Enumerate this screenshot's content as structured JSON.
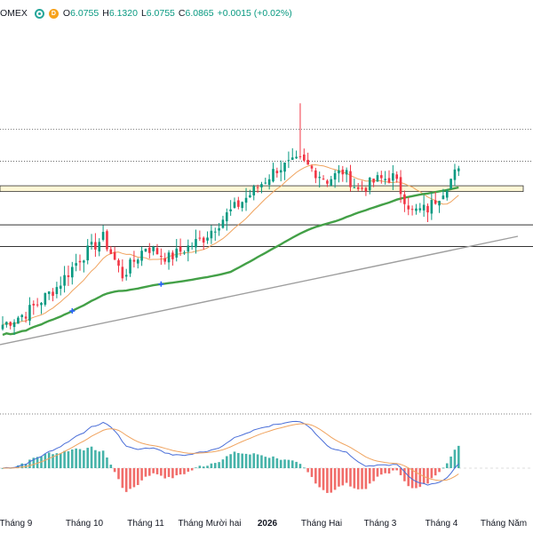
{
  "legend": {
    "symbol": "OMEX",
    "delay_badge": "D",
    "open_label": "O",
    "open": "6.0755",
    "high_label": "H",
    "high": "6.1320",
    "low_label": "L",
    "low": "6.0755",
    "close_label": "C",
    "close": "6.0865",
    "change": "+0.0015 (+0.02%)",
    "up_color": "#089981"
  },
  "colors": {
    "up": "#089981",
    "down": "#f23645",
    "ma_long": "#43a047",
    "ma_short": "#f0a35e",
    "macd_line": "#4a6ed8",
    "signal_line": "#f0a35e",
    "trendline": "#9e9e9e",
    "zone_fill": "#fff8d6"
  },
  "x_axis": {
    "labels": [
      {
        "text": "Tháng 9",
        "bold": false
      },
      {
        "text": "Tháng 10",
        "bold": false
      },
      {
        "text": "Tháng 11",
        "bold": false
      },
      {
        "text": "Tháng Mười hai",
        "bold": false
      },
      {
        "text": "2026",
        "bold": true
      },
      {
        "text": "Tháng Hai",
        "bold": false
      },
      {
        "text": "Tháng 3",
        "bold": false
      },
      {
        "text": "Tháng 4",
        "bold": false
      },
      {
        "text": "Tháng Năm",
        "bold": false
      }
    ]
  },
  "chart_data": {
    "type": "candlestick",
    "price_window": [
      4.9,
      6.65
    ],
    "anchors": [
      {
        "bar": 0,
        "close": 5.02
      },
      {
        "bar": 6,
        "close": 5.1
      },
      {
        "bar": 14,
        "close": 5.28
      },
      {
        "bar": 20,
        "close": 5.48
      },
      {
        "bar": 26,
        "close": 5.62
      },
      {
        "bar": 31,
        "close": 5.36
      },
      {
        "bar": 37,
        "close": 5.56
      },
      {
        "bar": 43,
        "close": 5.48
      },
      {
        "bar": 52,
        "close": 5.62
      },
      {
        "bar": 58,
        "close": 5.78
      },
      {
        "bar": 64,
        "close": 5.92
      },
      {
        "bar": 71,
        "close": 6.1
      },
      {
        "bar": 77,
        "close": 6.15
      },
      {
        "bar": 84,
        "close": 6.02
      },
      {
        "bar": 88,
        "close": 6.08
      },
      {
        "bar": 92,
        "close": 5.95
      },
      {
        "bar": 97,
        "close": 6.02
      },
      {
        "bar": 101,
        "close": 6.04
      },
      {
        "bar": 106,
        "close": 5.8
      },
      {
        "bar": 110,
        "close": 5.82
      },
      {
        "bar": 114,
        "close": 5.95
      },
      {
        "bar": 118,
        "close": 6.1
      }
    ],
    "horizontal_levels": [
      6.37,
      6.15,
      5.71,
      5.56
    ],
    "support_zone": [
      5.94,
      5.98
    ],
    "lines": [
      "MA long",
      "MA short",
      "Trendline"
    ],
    "macd": [
      "MACD",
      "Signal",
      "Histogram"
    ]
  }
}
